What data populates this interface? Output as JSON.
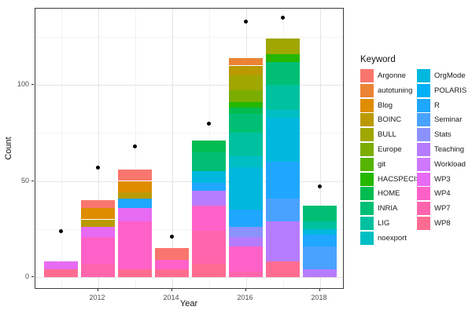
{
  "chart_data": {
    "type": "bar",
    "subtype": "stacked-bar-with-points",
    "title": "",
    "xlabel": "Year",
    "ylabel": "Count",
    "legend_title": "Keyword",
    "legend_position": "right",
    "grid": true,
    "ylim": [
      0,
      140
    ],
    "y_ticks": [
      0,
      50,
      100
    ],
    "years": [
      2011,
      2012,
      2013,
      2014,
      2015,
      2016,
      2017,
      2018
    ],
    "x_tick_years": [
      2012,
      2014,
      2016,
      2018
    ],
    "keywords": [
      {
        "label": "Argonne",
        "color": "#F8766D"
      },
      {
        "label": "autotuning",
        "color": "#EB8335"
      },
      {
        "label": "Blog",
        "color": "#DE8C00"
      },
      {
        "label": "BOINC",
        "color": "#BA9A00"
      },
      {
        "label": "BULL",
        "color": "#9FA700"
      },
      {
        "label": "Europe",
        "color": "#7BAD00"
      },
      {
        "label": "git",
        "color": "#56B400"
      },
      {
        "label": "HACSPECIS",
        "color": "#26B700"
      },
      {
        "label": "HOME",
        "color": "#00BC51"
      },
      {
        "label": "INRIA",
        "color": "#00BF74"
      },
      {
        "label": "LIG",
        "color": "#00C19F"
      },
      {
        "label": "noexport",
        "color": "#00BFC4"
      },
      {
        "label": "OrgMode",
        "color": "#00B8DE"
      },
      {
        "label": "POLARIS",
        "color": "#00B0F6"
      },
      {
        "label": "R",
        "color": "#1FA7FF"
      },
      {
        "label": "Seminar",
        "color": "#4AA2FF"
      },
      {
        "label": "Stats",
        "color": "#8B92FB"
      },
      {
        "label": "Teaching",
        "color": "#B67CFF"
      },
      {
        "label": "Workload",
        "color": "#CF78FF"
      },
      {
        "label": "WP3",
        "color": "#E76BF3"
      },
      {
        "label": "WP4",
        "color": "#FF61C9"
      },
      {
        "label": "WP7",
        "color": "#FF65AC"
      },
      {
        "label": "WP8",
        "color": "#FF6C91"
      }
    ],
    "bars": [
      {
        "year": 2011,
        "total": 8,
        "segments": [
          {
            "keyword": "WP8",
            "value": 4
          },
          {
            "keyword": "WP3",
            "value": 4
          }
        ]
      },
      {
        "year": 2012,
        "total": 40,
        "segments": [
          {
            "keyword": "WP7",
            "value": 7
          },
          {
            "keyword": "WP4",
            "value": 14
          },
          {
            "keyword": "WP3",
            "value": 5
          },
          {
            "keyword": "BOINC",
            "value": 4
          },
          {
            "keyword": "Blog",
            "value": 6
          },
          {
            "keyword": "Argonne",
            "value": 4
          }
        ]
      },
      {
        "year": 2013,
        "total": 56,
        "segments": [
          {
            "keyword": "WP8",
            "value": 4
          },
          {
            "keyword": "WP4",
            "value": 25
          },
          {
            "keyword": "WP3",
            "value": 7
          },
          {
            "keyword": "R",
            "value": 5
          },
          {
            "keyword": "BOINC",
            "value": 3
          },
          {
            "keyword": "Blog",
            "value": 6
          },
          {
            "keyword": "Argonne",
            "value": 6
          }
        ]
      },
      {
        "year": 2014,
        "total": 15,
        "segments": [
          {
            "keyword": "WP8",
            "value": 4
          },
          {
            "keyword": "WP4",
            "value": 5
          },
          {
            "keyword": "Argonne",
            "value": 6
          }
        ]
      },
      {
        "year": 2015,
        "total": 71,
        "segments": [
          {
            "keyword": "WP8",
            "value": 7
          },
          {
            "keyword": "WP7",
            "value": 17
          },
          {
            "keyword": "WP4",
            "value": 13
          },
          {
            "keyword": "Teaching",
            "value": 8
          },
          {
            "keyword": "R",
            "value": 4
          },
          {
            "keyword": "OrgMode",
            "value": 6
          },
          {
            "keyword": "INRIA",
            "value": 10
          },
          {
            "keyword": "HOME",
            "value": 6
          }
        ]
      },
      {
        "year": 2016,
        "total": 114,
        "segments": [
          {
            "keyword": "WP7",
            "value": 3
          },
          {
            "keyword": "WP4",
            "value": 13
          },
          {
            "keyword": "Teaching",
            "value": 5
          },
          {
            "keyword": "Stats",
            "value": 5
          },
          {
            "keyword": "R",
            "value": 9
          },
          {
            "keyword": "OrgMode",
            "value": 22
          },
          {
            "keyword": "noexport",
            "value": 6
          },
          {
            "keyword": "LIG",
            "value": 12
          },
          {
            "keyword": "INRIA",
            "value": 10
          },
          {
            "keyword": "HOME",
            "value": 3
          },
          {
            "keyword": "HACSPECIS",
            "value": 3
          },
          {
            "keyword": "Europe",
            "value": 6
          },
          {
            "keyword": "BULL",
            "value": 8
          },
          {
            "keyword": "BOINC",
            "value": 5
          },
          {
            "keyword": "autotuning",
            "value": 4
          }
        ]
      },
      {
        "year": 2017,
        "total": 124,
        "segments": [
          {
            "keyword": "WP8",
            "value": 8
          },
          {
            "keyword": "Teaching",
            "value": 21
          },
          {
            "keyword": "Seminar",
            "value": 12
          },
          {
            "keyword": "R",
            "value": 19
          },
          {
            "keyword": "OrgMode",
            "value": 23
          },
          {
            "keyword": "noexport",
            "value": 4
          },
          {
            "keyword": "LIG",
            "value": 13
          },
          {
            "keyword": "INRIA",
            "value": 12
          },
          {
            "keyword": "HACSPECIS",
            "value": 4
          },
          {
            "keyword": "BULL",
            "value": 8
          }
        ]
      },
      {
        "year": 2018,
        "total": 37,
        "segments": [
          {
            "keyword": "Teaching",
            "value": 4
          },
          {
            "keyword": "Seminar",
            "value": 12
          },
          {
            "keyword": "R",
            "value": 6
          },
          {
            "keyword": "OrgMode",
            "value": 3
          },
          {
            "keyword": "LIG",
            "value": 4
          },
          {
            "keyword": "INRIA",
            "value": 8
          }
        ]
      }
    ],
    "points": [
      {
        "year": 2011,
        "value": 24
      },
      {
        "year": 2012,
        "value": 57
      },
      {
        "year": 2013,
        "value": 68
      },
      {
        "year": 2014,
        "value": 21
      },
      {
        "year": 2015,
        "value": 80
      },
      {
        "year": 2016,
        "value": 133
      },
      {
        "year": 2017,
        "value": 135
      },
      {
        "year": 2018,
        "value": 47
      }
    ]
  }
}
